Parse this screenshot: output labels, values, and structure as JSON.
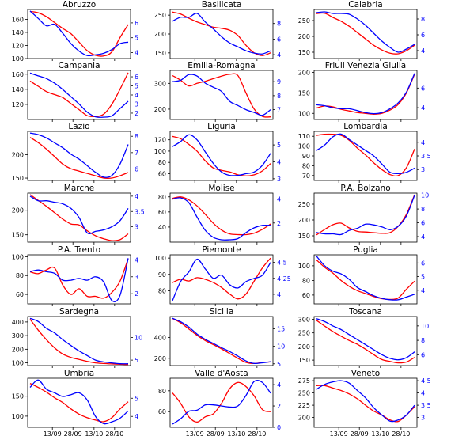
{
  "chart_data": {
    "type": "line",
    "series_colors": {
      "left": "#ff0000",
      "right": "#0000ff"
    },
    "x_tick_labels": [
      "13/09",
      "28/09",
      "13/10",
      "28/10"
    ],
    "panels": [
      {
        "title": "Abruzzo",
        "left": {
          "ylim": [
            100,
            175
          ],
          "ticks": [
            100,
            120,
            140,
            160
          ],
          "values": [
            172,
            170,
            164,
            155,
            146,
            138,
            125,
            112,
            105,
            104,
            110,
            132,
            152
          ]
        },
        "right": {
          "ylim": [
            3.6,
            6.9
          ],
          "ticks": [
            4,
            5,
            6
          ],
          "values": [
            6.8,
            6.3,
            5.8,
            5.9,
            5.3,
            4.6,
            4.1,
            3.8,
            3.85,
            3.95,
            4.2,
            4.6,
            4.7
          ]
        }
      },
      {
        "title": "Basilicata",
        "left": {
          "ylim": [
            135,
            265
          ],
          "ticks": [
            150,
            200,
            250
          ],
          "values": [
            258,
            253,
            242,
            232,
            225,
            218,
            215,
            210,
            196,
            170,
            150,
            143,
            150
          ]
        },
        "right": {
          "ylim": [
            3.5,
            9.8
          ],
          "ticks": [
            4,
            6,
            8
          ],
          "values": [
            8.3,
            8.8,
            8.8,
            9.3,
            8.2,
            7.3,
            6.3,
            5.5,
            5.0,
            4.5,
            4.2,
            4.1,
            4.5
          ]
        }
      },
      {
        "title": "Calabria",
        "left": {
          "ylim": [
            130,
            285
          ],
          "ticks": [
            150,
            200,
            250
          ],
          "values": [
            272,
            273,
            260,
            248,
            232,
            212,
            192,
            172,
            157,
            147,
            145,
            155,
            172
          ]
        },
        "right": {
          "ylim": [
            3.0,
            9.2
          ],
          "ticks": [
            4,
            6,
            8
          ],
          "values": [
            8.8,
            8.9,
            8.7,
            8.7,
            8.6,
            8.0,
            7.2,
            6.2,
            5.2,
            4.4,
            3.8,
            4.2,
            4.8
          ]
        }
      },
      {
        "title": "Campania",
        "left": {
          "ylim": [
            100,
            165
          ],
          "ticks": [
            120,
            140,
            160
          ],
          "values": [
            151,
            144,
            137,
            133,
            129,
            121,
            113,
            105,
            104,
            107,
            120,
            140,
            162
          ]
        },
        "right": {
          "ylim": [
            1.3,
            6.7
          ],
          "ticks": [
            2,
            3,
            4,
            5,
            6
          ],
          "values": [
            6.4,
            6.1,
            5.8,
            5.3,
            4.6,
            3.8,
            3.0,
            2.1,
            1.6,
            1.55,
            1.7,
            2.5,
            3.3
          ]
        }
      },
      {
        "title": "Emilia-Romagna",
        "left": {
          "ylim": [
            160,
            350
          ],
          "ticks": [
            200,
            300
          ],
          "values": [
            330,
            312,
            290,
            300,
            308,
            318,
            328,
            335,
            330,
            262,
            200,
            172,
            170
          ]
        },
        "right": {
          "ylim": [
            6.3,
            9.8
          ],
          "ticks": [
            7,
            8,
            9
          ],
          "values": [
            9.0,
            9.1,
            9.5,
            9.4,
            8.9,
            8.6,
            8.3,
            7.6,
            7.3,
            7.0,
            6.8,
            6.6,
            7.0
          ]
        }
      },
      {
        "title": "Friuli Venezia Giulia",
        "left": {
          "ylim": [
            85,
            205
          ],
          "ticks": [
            100,
            150,
            200
          ],
          "values": [
            113,
            118,
            116,
            110,
            106,
            102,
            100,
            98,
            100,
            108,
            122,
            150,
            196
          ]
        },
        "right": {
          "ylim": [
            2.8,
            7.8
          ],
          "ticks": [
            4,
            6
          ],
          "values": [
            4.3,
            4.2,
            4.0,
            3.9,
            3.9,
            3.7,
            3.5,
            3.4,
            3.5,
            3.9,
            4.5,
            5.6,
            7.5
          ]
        }
      },
      {
        "title": "Lazio",
        "left": {
          "ylim": [
            145,
            250
          ],
          "ticks": [
            150,
            200
          ],
          "values": [
            237,
            226,
            212,
            196,
            180,
            170,
            165,
            160,
            155,
            150,
            150,
            155,
            162
          ]
        },
        "right": {
          "ylim": [
            5.3,
            8.3
          ],
          "ticks": [
            6,
            7,
            8
          ],
          "values": [
            8.2,
            8.1,
            7.9,
            7.6,
            7.3,
            6.9,
            6.6,
            6.2,
            5.8,
            5.5,
            5.6,
            6.3,
            7.5
          ]
        }
      },
      {
        "title": "Liguria",
        "left": {
          "ylim": [
            48,
            135
          ],
          "ticks": [
            60,
            80,
            100,
            120
          ],
          "values": [
            126,
            122,
            112,
            100,
            83,
            70,
            66,
            63,
            58,
            56,
            58,
            65,
            78
          ]
        },
        "right": {
          "ylim": [
            2.9,
            5.8
          ],
          "ticks": [
            3,
            4,
            5
          ],
          "values": [
            4.9,
            5.2,
            5.6,
            5.3,
            4.6,
            3.9,
            3.4,
            3.2,
            3.2,
            3.3,
            3.4,
            3.8,
            4.5
          ]
        }
      },
      {
        "title": "Lombardia",
        "left": {
          "ylim": [
            65,
            115
          ],
          "ticks": [
            70,
            80,
            90,
            100,
            110
          ],
          "values": [
            111,
            112,
            112,
            111,
            106,
            98,
            91,
            83,
            76,
            71,
            70,
            78,
            97
          ]
        },
        "right": {
          "ylim": [
            2.6,
            4.4
          ],
          "ticks": [
            3.0,
            3.5,
            4.0
          ],
          "values": [
            3.7,
            3.9,
            4.2,
            4.3,
            4.1,
            3.9,
            3.7,
            3.5,
            3.2,
            2.9,
            2.85,
            2.9,
            3.05
          ]
        }
      },
      {
        "title": "Marche",
        "left": {
          "ylim": [
            135,
            235
          ],
          "ticks": [
            150,
            200
          ],
          "values": [
            232,
            220,
            208,
            195,
            182,
            172,
            170,
            158,
            148,
            142,
            138,
            140,
            152
          ]
        },
        "right": {
          "ylim": [
            2.5,
            4.1
          ],
          "ticks": [
            3.0,
            3.5,
            4.0
          ],
          "values": [
            4.0,
            3.85,
            3.85,
            3.8,
            3.75,
            3.6,
            3.3,
            2.8,
            2.85,
            2.9,
            3.0,
            3.2,
            3.6
          ]
        }
      },
      {
        "title": "Molise",
        "left": {
          "ylim": [
            20,
            85
          ],
          "ticks": [
            40,
            60,
            80
          ],
          "values": [
            78,
            80,
            76,
            68,
            57,
            45,
            36,
            31,
            30,
            30,
            32,
            37,
            44
          ]
        },
        "right": {
          "ylim": [
            0.4,
            4.5
          ],
          "ticks": [
            2,
            4
          ],
          "values": [
            4.0,
            4.1,
            3.7,
            2.5,
            1.4,
            0.8,
            0.6,
            0.6,
            0.7,
            1.2,
            1.6,
            1.8,
            1.8
          ]
        }
      },
      {
        "title": "P.A. Bolzano",
        "left": {
          "ylim": [
            130,
            285
          ],
          "ticks": [
            150,
            200,
            250
          ],
          "values": [
            153,
            170,
            185,
            190,
            175,
            164,
            162,
            160,
            158,
            160,
            180,
            218,
            280
          ]
        },
        "right": {
          "ylim": [
            3.2,
            10.3
          ],
          "ticks": [
            4,
            6,
            8,
            10
          ],
          "values": [
            4.6,
            4.4,
            4.4,
            4.3,
            4.9,
            5.2,
            5.8,
            5.7,
            5.4,
            5.0,
            5.5,
            7.0,
            10.0
          ]
        }
      },
      {
        "title": "P.A. Trento",
        "left": {
          "ylim": [
            50,
            102
          ],
          "ticks": [
            60,
            80,
            100
          ],
          "values": [
            84,
            82,
            86,
            88,
            70,
            60,
            66,
            58,
            58,
            56,
            62,
            74,
            98
          ]
        },
        "right": {
          "ylim": [
            1.4,
            4.3
          ],
          "ticks": [
            2,
            3,
            4
          ],
          "values": [
            3.3,
            3.4,
            3.3,
            3.2,
            2.8,
            2.8,
            2.9,
            2.8,
            3.0,
            2.7,
            1.6,
            1.9,
            4.1
          ]
        }
      },
      {
        "title": "Piemonte",
        "left": {
          "ylim": [
            72,
            102
          ],
          "ticks": [
            80,
            90,
            100
          ],
          "values": [
            85,
            87,
            86,
            88,
            87,
            85,
            82,
            78,
            75,
            78,
            86,
            94,
            100
          ]
        },
        "right": {
          "ylim": [
            3.85,
            4.62
          ],
          "ticks": [
            4.0,
            4.25,
            4.5
          ],
          "values": [
            3.9,
            4.2,
            4.35,
            4.55,
            4.4,
            4.25,
            4.3,
            4.15,
            4.1,
            4.2,
            4.25,
            4.3,
            4.5
          ]
        }
      },
      {
        "title": "Puglia",
        "left": {
          "ylim": [
            48,
            115
          ],
          "ticks": [
            60,
            80,
            100
          ],
          "values": [
            108,
            98,
            90,
            80,
            72,
            66,
            62,
            58,
            55,
            54,
            56,
            68,
            79
          ]
        },
        "right": {
          "ylim": [
            3.0,
            6.6
          ],
          "ticks": [
            4,
            5,
            6
          ],
          "values": [
            6.5,
            5.8,
            5.4,
            5.2,
            4.8,
            4.2,
            3.9,
            3.6,
            3.4,
            3.3,
            3.3,
            3.5,
            3.7
          ]
        }
      },
      {
        "title": "Sardegna",
        "left": {
          "ylim": [
            80,
            440
          ],
          "ticks": [
            100,
            200,
            300,
            400
          ],
          "values": [
            420,
            340,
            270,
            210,
            165,
            140,
            125,
            110,
            100,
            95,
            92,
            90,
            88
          ]
        },
        "right": {
          "ylim": [
            3.8,
            14.6
          ],
          "ticks": [
            5,
            10
          ],
          "values": [
            14.2,
            13.5,
            12.0,
            11.0,
            9.5,
            8.2,
            7.0,
            6.0,
            5.0,
            4.6,
            4.4,
            4.2,
            4.2
          ]
        }
      },
      {
        "title": "Sicilia",
        "left": {
          "ylim": [
            130,
            600
          ],
          "ticks": [
            200,
            400
          ],
          "values": [
            580,
            540,
            480,
            420,
            370,
            330,
            290,
            245,
            200,
            160,
            150,
            160,
            165
          ]
        },
        "right": {
          "ylim": [
            4.5,
            18.5
          ],
          "ticks": [
            5,
            10,
            15
          ],
          "values": [
            18.0,
            17.0,
            15.5,
            13.5,
            12.0,
            10.8,
            9.6,
            8.5,
            7.2,
            5.8,
            5.1,
            5.3,
            5.6
          ]
        }
      },
      {
        "title": "Toscana",
        "left": {
          "ylim": [
            130,
            310
          ],
          "ticks": [
            150,
            200,
            250,
            300
          ],
          "values": [
            296,
            275,
            255,
            238,
            222,
            208,
            190,
            170,
            152,
            145,
            140,
            143,
            160
          ]
        },
        "right": {
          "ylim": [
            4.5,
            11.3
          ],
          "ticks": [
            6,
            8,
            10
          ],
          "values": [
            11.0,
            10.6,
            10.0,
            9.5,
            8.8,
            8.1,
            7.4,
            6.7,
            6.0,
            5.5,
            5.3,
            5.6,
            6.4
          ]
        }
      },
      {
        "title": "Umbria",
        "left": {
          "ylim": [
            72,
            195
          ],
          "ticks": [
            100,
            150
          ],
          "values": [
            182,
            172,
            160,
            146,
            134,
            118,
            105,
            96,
            90,
            86,
            96,
            118,
            136
          ]
        },
        "right": {
          "ylim": [
            3.4,
            6.1
          ],
          "ticks": [
            4,
            5
          ],
          "values": [
            5.6,
            6.0,
            5.5,
            5.3,
            5.1,
            5.2,
            5.3,
            4.9,
            4.0,
            3.6,
            3.7,
            3.9,
            4.3
          ]
        }
      },
      {
        "title": "Valle d'Aosta",
        "left": {
          "ylim": [
            45,
            92
          ],
          "ticks": [
            60,
            80
          ],
          "values": [
            78,
            68,
            55,
            50,
            55,
            58,
            68,
            82,
            88,
            84,
            75,
            62,
            60
          ]
        },
        "right": {
          "ylim": [
            0,
            4.6
          ],
          "ticks": [
            0,
            2,
            4
          ],
          "values": [
            0.3,
            0.8,
            1.5,
            1.6,
            2.1,
            2.1,
            2.0,
            1.9,
            2.0,
            3.0,
            4.3,
            4.2,
            3.2
          ]
        }
      },
      {
        "title": "Veneto",
        "left": {
          "ylim": [
            180,
            280
          ],
          "ticks": [
            200,
            225,
            250,
            275
          ],
          "values": [
            265,
            265,
            260,
            255,
            248,
            238,
            225,
            213,
            205,
            195,
            192,
            205,
            222
          ]
        },
        "right": {
          "ylim": [
            2.6,
            4.6
          ],
          "ticks": [
            3.0,
            3.5,
            4.0,
            4.5
          ],
          "values": [
            4.15,
            4.35,
            4.45,
            4.5,
            4.4,
            4.1,
            3.8,
            3.4,
            3.1,
            2.85,
            2.9,
            3.1,
            3.5
          ]
        }
      }
    ]
  }
}
